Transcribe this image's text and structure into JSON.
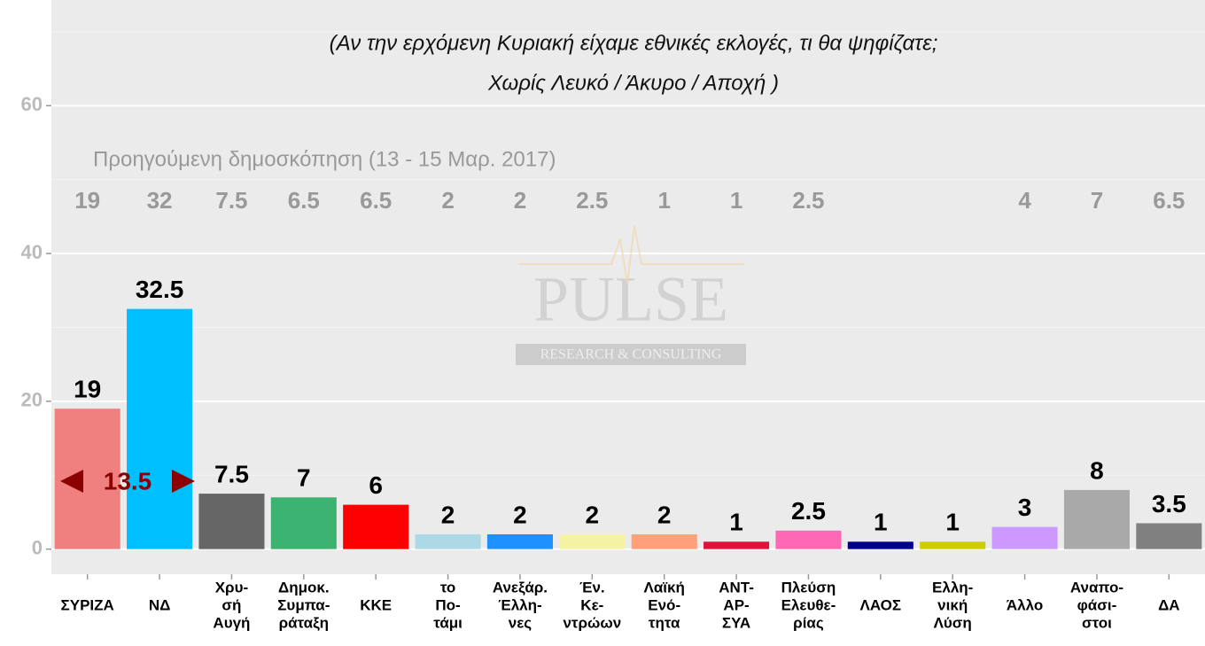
{
  "chart_data": {
    "type": "bar",
    "title": [
      "(Αν την ερχόμενη Κυριακή είχαμε εθνικές εκλογές, τι θα ψηφίζατε;",
      "Χωρίς Λευκό / Άκυρο / Αποχή )"
    ],
    "categories": [
      [
        "ΣΥΡΙΖΑ"
      ],
      [
        "ΝΔ"
      ],
      [
        "Χρυ-",
        "σή",
        "Αυγή"
      ],
      [
        "Δημοκ.",
        "Συμπα-",
        "ράταξη"
      ],
      [
        "ΚΚΕ"
      ],
      [
        "το",
        "Πο-",
        "τάμι"
      ],
      [
        "Ανεξάρ.",
        "Έλλη-",
        "νες"
      ],
      [
        "Έν.",
        "Κε-",
        "ντρώων"
      ],
      [
        "Λαϊκή",
        "Ενό-",
        "τητα"
      ],
      [
        "ΑΝΤ-",
        "ΑΡ-",
        "ΣΥΑ"
      ],
      [
        "Πλεύση",
        "Ελευθε-",
        "ρίας"
      ],
      [
        "ΛΑΟΣ"
      ],
      [
        "Ελλη-",
        "νική",
        "Λύση"
      ],
      [
        "Άλλο"
      ],
      [
        "Αναπο-",
        "φάσι-",
        "στοι"
      ],
      [
        "ΔΑ"
      ]
    ],
    "values": [
      19,
      32.5,
      7.5,
      7,
      6,
      2,
      2,
      2,
      2,
      1,
      2.5,
      1,
      1,
      3,
      8,
      3.5
    ],
    "colors": [
      "#f08080",
      "#00bfff",
      "#666666",
      "#3cb371",
      "#ff0000",
      "#add8e6",
      "#1e90ff",
      "#f3f3a3",
      "#ffa07a",
      "#dc143c",
      "#ff69b4",
      "#00008b",
      "#cdcd00",
      "#cc99ff",
      "#a9a9a9",
      "#808080"
    ],
    "previous_label": "Προηγούμενη δημοσκόπηση (13 - 15 Μαρ. 2017)",
    "previous_values": [
      19,
      32,
      7.5,
      6.5,
      6.5,
      2,
      2,
      2.5,
      1,
      1,
      2.5,
      null,
      null,
      4,
      7,
      6.5
    ],
    "annotation": "13.5",
    "watermark": [
      "PULSE",
      "RESEARCH & CONSULTING"
    ],
    "ylim": [
      -3.4,
      74.3
    ],
    "yticks": [
      0,
      20,
      40,
      60
    ],
    "minor_yticks": [
      10,
      30,
      50,
      70
    ],
    "grid": true
  }
}
